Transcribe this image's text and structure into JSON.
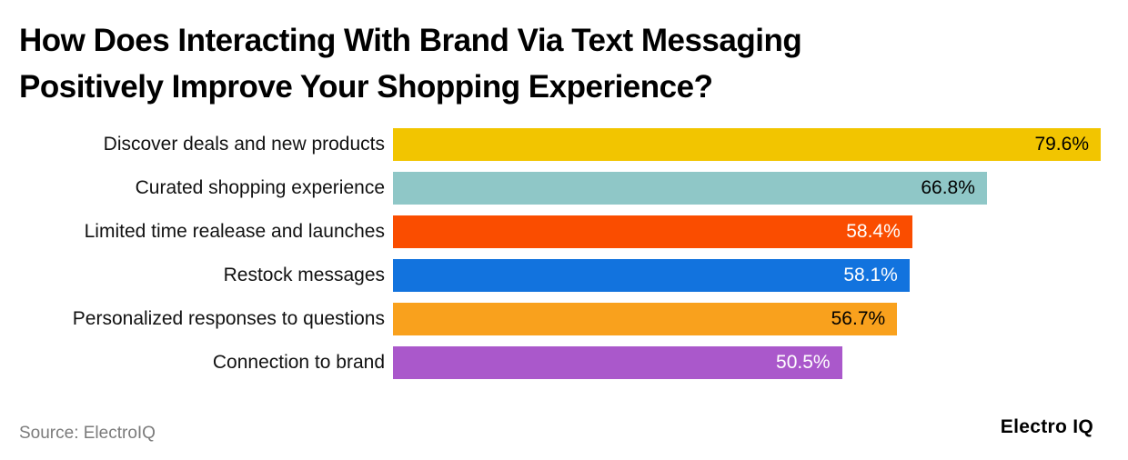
{
  "header": {
    "title_line1": "How Does Interacting With Brand Via Text Messaging",
    "title_line2": "Positively Improve Your Shopping Experience?"
  },
  "footer": {
    "source": "Source: ElectroIQ",
    "brand": "Electro IQ"
  },
  "chart_data": {
    "type": "bar",
    "orientation": "horizontal",
    "title": "How Does Interacting With Brand Via Text Messaging Positively Improve Your Shopping Experience?",
    "categories": [
      "Discover deals and new products",
      "Curated shopping experience",
      "Limited time realease and launches",
      "Restock messages",
      "Personalized responses to questions",
      "Connection to brand"
    ],
    "values": [
      79.6,
      66.8,
      58.4,
      58.1,
      56.7,
      50.5
    ],
    "value_labels": [
      "79.6%",
      "66.8%",
      "58.4%",
      "58.1%",
      "56.7%",
      "50.5%"
    ],
    "colors": [
      "#F2C500",
      "#8FC7C7",
      "#FA4D00",
      "#1273DE",
      "#F9A11D",
      "#AA58CB"
    ],
    "value_label_colors": [
      "#000000",
      "#000000",
      "#ffffff",
      "#ffffff",
      "#000000",
      "#ffffff"
    ],
    "xlim": [
      0,
      79.6
    ],
    "grid": false,
    "legend": false
  }
}
